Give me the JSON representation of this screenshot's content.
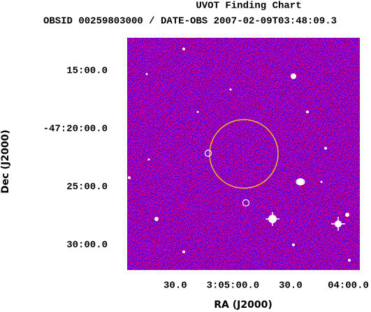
{
  "chart_data": {
    "type": "finding-chart",
    "title": "UVOT Finding Chart",
    "subtitle": "OBSID 00259803000 / DATE-OBS 2007-02-09T03:48:09.3",
    "xlabel": "RA (J2000)",
    "ylabel": "Dec (J2000)",
    "xlim": [
      11155,
      11034
    ],
    "xticks": [
      {
        "value": 11130,
        "label": "30.0"
      },
      {
        "value": 11100,
        "label": "3:05:00.0"
      },
      {
        "value": 11070,
        "label": "30.0"
      },
      {
        "value": 11040,
        "label": "04:00.0"
      }
    ],
    "ylim": [
      -171130,
      -169930
    ],
    "yticks": [
      {
        "value": -170100,
        "label": "15:00.0"
      },
      {
        "value": -170400,
        "label": "-47:20:00.0"
      },
      {
        "value": -170700,
        "label": "25:00.0"
      },
      {
        "value": -171000,
        "label": "30:00.0"
      }
    ]
  }
}
